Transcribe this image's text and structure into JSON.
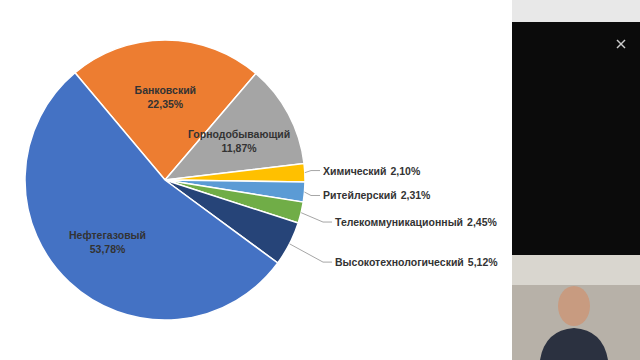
{
  "chart_data": {
    "type": "pie",
    "categories": [
      "Банковский",
      "Горнодобывающий",
      "Химический",
      "Ритейлерский",
      "Телекоммуникационный",
      "Высокотехнологический",
      "Нефтегазовый"
    ],
    "values": [
      22.35,
      11.87,
      2.1,
      2.31,
      2.45,
      5.12,
      53.78
    ],
    "value_labels": [
      "22,35%",
      "11,87%",
      "2,10%",
      "2,31%",
      "2,45%",
      "5,12%",
      "53,78%"
    ],
    "colors": [
      "#ed7d31",
      "#a5a5a5",
      "#ffc000",
      "#5b9bd5",
      "#70ad47",
      "#264478",
      "#4472c4"
    ],
    "data_labels": true
  }
}
